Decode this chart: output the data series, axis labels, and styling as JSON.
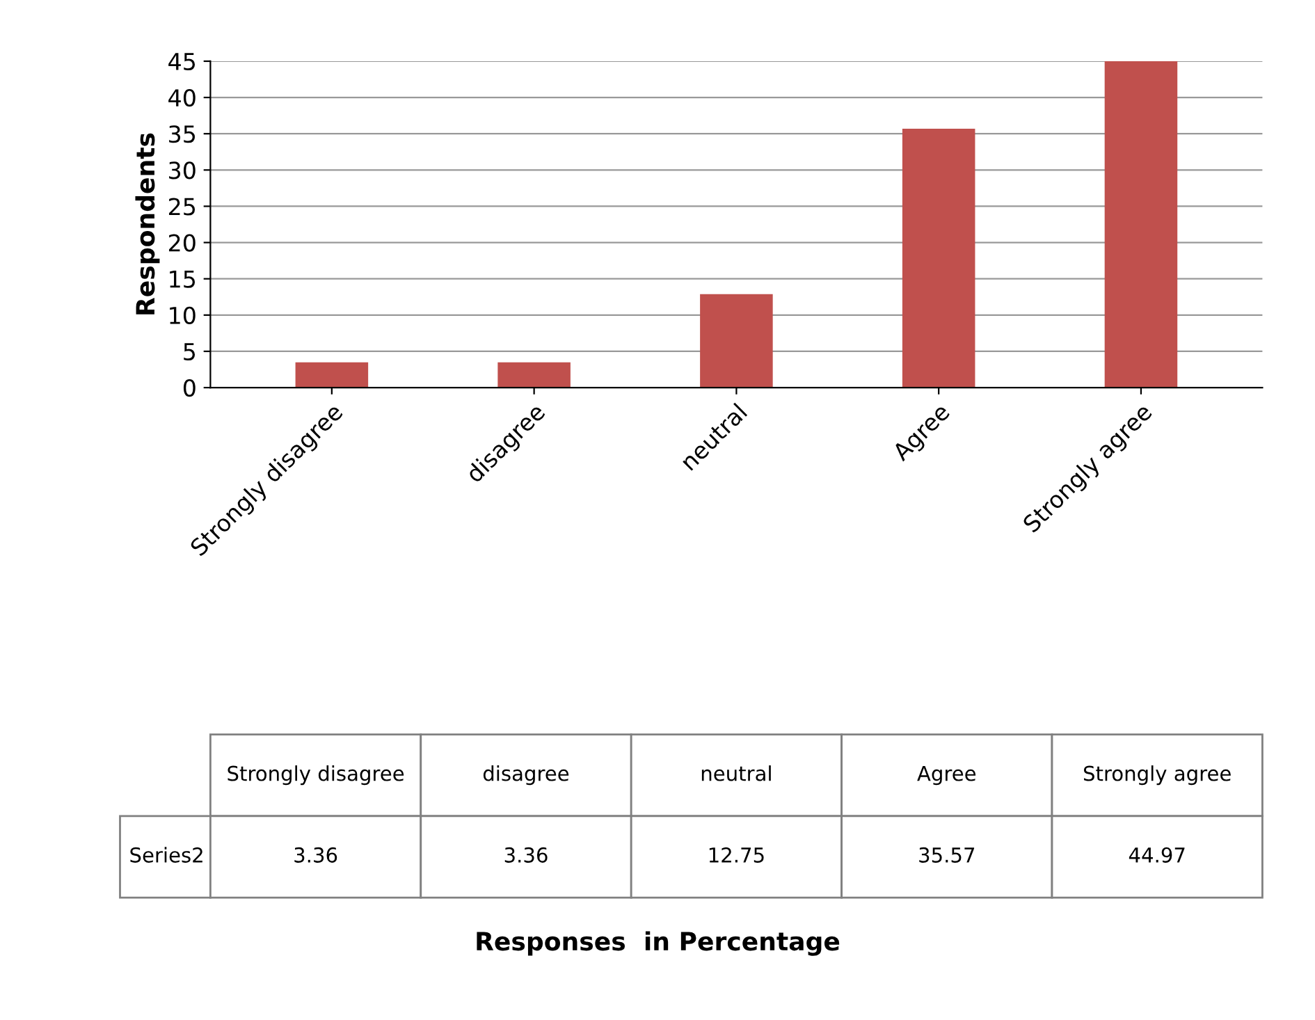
{
  "chart_data": {
    "type": "bar",
    "ylabel": "Respondents",
    "annotations": [
      "Responses  in Percentage"
    ],
    "categories": [
      "Strongly disagree",
      "disagree",
      "neutral",
      "Agree",
      "Strongly agree"
    ],
    "series": [
      {
        "name": "Series2",
        "color": "#c0504d",
        "values": [
          3.36,
          3.36,
          12.75,
          35.57,
          44.97
        ]
      }
    ],
    "ylim": [
      0,
      45
    ],
    "yticks": [
      0,
      5,
      10,
      15,
      20,
      25,
      30,
      35,
      40,
      45
    ],
    "grid": "y",
    "data_labels": true
  }
}
